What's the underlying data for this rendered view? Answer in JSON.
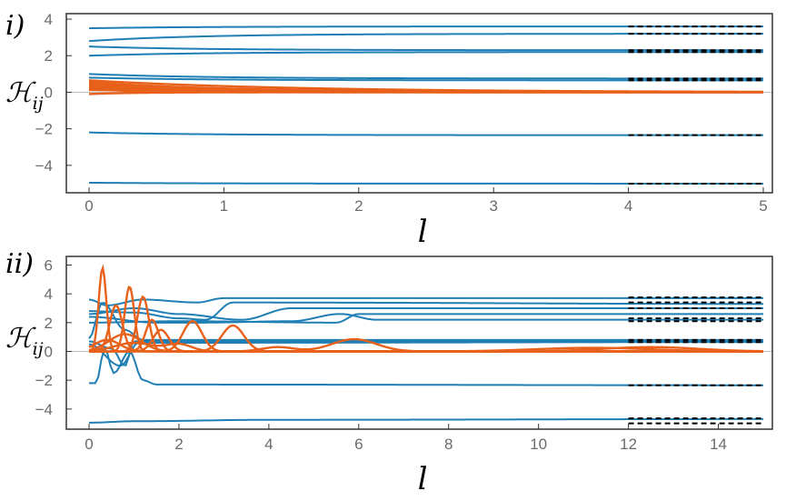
{
  "colors": {
    "blue": "#1f7fb4",
    "orange": "#e8611a",
    "ref": "#000000",
    "frame": "#333333"
  },
  "chart_data": [
    {
      "type": "line",
      "panel_label": "i)",
      "xlabel": "l",
      "ylabel_main": "ℋ",
      "ylabel_sub": "ij",
      "xlim": [
        0,
        5
      ],
      "ylim": [
        -5.5,
        4.3
      ],
      "xticks": [
        "0",
        "1",
        "2",
        "3",
        "4",
        "5"
      ],
      "yticks": [
        "−4",
        "−2",
        "0",
        "2",
        "4"
      ],
      "reference_x_range": [
        4,
        5
      ],
      "reference_levels": [
        3.6,
        3.2,
        2.3,
        2.2,
        0.75,
        0.65,
        -2.35,
        -5.0
      ],
      "diagonal": [
        {
          "start": 3.5,
          "end": 3.6
        },
        {
          "start": 2.8,
          "end": 3.2
        },
        {
          "start": 2.5,
          "end": 2.3
        },
        {
          "start": 2.0,
          "end": 2.2
        },
        {
          "start": 1.0,
          "end": 0.75
        },
        {
          "start": 0.8,
          "end": 0.65
        },
        {
          "start": -2.2,
          "end": -2.35
        },
        {
          "start": -4.95,
          "end": -5.0
        }
      ],
      "offdiagonal": [
        {
          "start": 0.65,
          "decay": 1.1
        },
        {
          "start": 0.55,
          "decay": 1.6
        },
        {
          "start": 0.48,
          "decay": 2.2
        },
        {
          "start": 0.4,
          "decay": 3.0
        },
        {
          "start": 0.3,
          "decay": 4.2
        },
        {
          "start": 0.2,
          "decay": 6.0
        },
        {
          "start": 0.12,
          "decay": 0.9
        },
        {
          "start": -0.1,
          "decay": 5.0
        }
      ]
    },
    {
      "type": "line",
      "panel_label": "ii)",
      "xlabel": "l",
      "ylabel_main": "ℋ",
      "ylabel_sub": "ij",
      "xlim": [
        0,
        15
      ],
      "ylim": [
        -5.4,
        6.6
      ],
      "xticks": [
        "0",
        "2",
        "4",
        "6",
        "8",
        "10",
        "12",
        "14"
      ],
      "yticks": [
        "−4",
        "−2",
        "0",
        "2",
        "4",
        "6"
      ],
      "reference_x_range": [
        12,
        15
      ],
      "reference_levels": [
        3.75,
        3.4,
        3.0,
        2.3,
        2.1,
        0.8,
        0.65,
        -2.35,
        -4.65,
        -5.0
      ],
      "diagonal": [
        {
          "segments": [
            [
              0,
              3.6
            ],
            [
              0.4,
              3.2
            ],
            [
              1.2,
              3.6
            ],
            [
              2.4,
              3.4
            ],
            [
              3.0,
              3.7
            ],
            [
              15,
              3.7
            ]
          ]
        },
        {
          "segments": [
            [
              0,
              2.8
            ],
            [
              1.0,
              2.7
            ],
            [
              2.0,
              2.3
            ],
            [
              2.6,
              2.2
            ],
            [
              3.2,
              3.4
            ],
            [
              15,
              3.3
            ]
          ]
        },
        {
          "segments": [
            [
              0,
              2.6
            ],
            [
              1.0,
              3.0
            ],
            [
              2.0,
              2.6
            ],
            [
              3.4,
              2.2
            ],
            [
              4.5,
              3.0
            ],
            [
              15,
              3.0
            ]
          ]
        },
        {
          "segments": [
            [
              0,
              2.4
            ],
            [
              1.5,
              2.0
            ],
            [
              2.5,
              2.0
            ],
            [
              4.5,
              2.1
            ],
            [
              5.6,
              2.6
            ],
            [
              6.4,
              2.2
            ],
            [
              15,
              2.2
            ]
          ]
        },
        {
          "segments": [
            [
              0,
              2.0
            ],
            [
              2.0,
              2.1
            ],
            [
              5.5,
              2.0
            ],
            [
              6.0,
              2.6
            ],
            [
              7.0,
              2.6
            ],
            [
              15,
              2.6
            ]
          ]
        },
        {
          "segments": [
            [
              0,
              0.9
            ],
            [
              0.3,
              3.4
            ],
            [
              0.8,
              1.5
            ],
            [
              1.2,
              0.8
            ],
            [
              15,
              0.8
            ]
          ]
        },
        {
          "segments": [
            [
              0,
              0.7
            ],
            [
              0.5,
              0.2
            ],
            [
              0.8,
              -1.0
            ],
            [
              1.0,
              0.7
            ],
            [
              15,
              0.7
            ]
          ]
        },
        {
          "segments": [
            [
              0,
              0.5
            ],
            [
              0.7,
              -1.0
            ],
            [
              1.1,
              0.6
            ],
            [
              15,
              0.65
            ]
          ]
        },
        {
          "segments": [
            [
              0,
              -2.2
            ],
            [
              0.15,
              -2.2
            ],
            [
              0.35,
              0.2
            ],
            [
              0.55,
              -1.5
            ],
            [
              0.9,
              0.0
            ],
            [
              1.2,
              -2.0
            ],
            [
              1.5,
              -2.3
            ],
            [
              15,
              -2.35
            ]
          ]
        },
        {
          "segments": [
            [
              0,
              -4.95
            ],
            [
              1.0,
              -4.85
            ],
            [
              4.0,
              -4.75
            ],
            [
              15,
              -4.7
            ]
          ]
        }
      ],
      "offdiagonal": [
        {
          "bumps": [
            [
              0.3,
              5.8,
              0.12
            ],
            [
              1.6,
              1.5,
              0.25
            ]
          ]
        },
        {
          "bumps": [
            [
              0.9,
              4.5,
              0.15
            ],
            [
              2.3,
              2.1,
              0.3
            ]
          ]
        },
        {
          "bumps": [
            [
              1.2,
              3.8,
              0.18
            ],
            [
              3.2,
              1.8,
              0.35
            ]
          ]
        },
        {
          "bumps": [
            [
              0.6,
              3.2,
              0.2
            ],
            [
              1.4,
              2.2,
              0.2
            ]
          ]
        },
        {
          "bumps": [
            [
              5.9,
              0.85,
              0.7
            ],
            [
              4.2,
              0.3,
              0.5
            ]
          ]
        },
        {
          "bumps": [
            [
              0.8,
              1.2,
              0.5
            ],
            [
              11.2,
              0.25,
              1.8
            ]
          ]
        },
        {
          "bumps": [
            [
              0.4,
              0.8,
              0.4
            ],
            [
              12.5,
              0.3,
              1.5
            ]
          ]
        },
        {
          "bumps": [
            [
              1.0,
              0.6,
              0.6
            ],
            [
              2.0,
              0.5,
              0.4
            ]
          ]
        }
      ]
    }
  ]
}
